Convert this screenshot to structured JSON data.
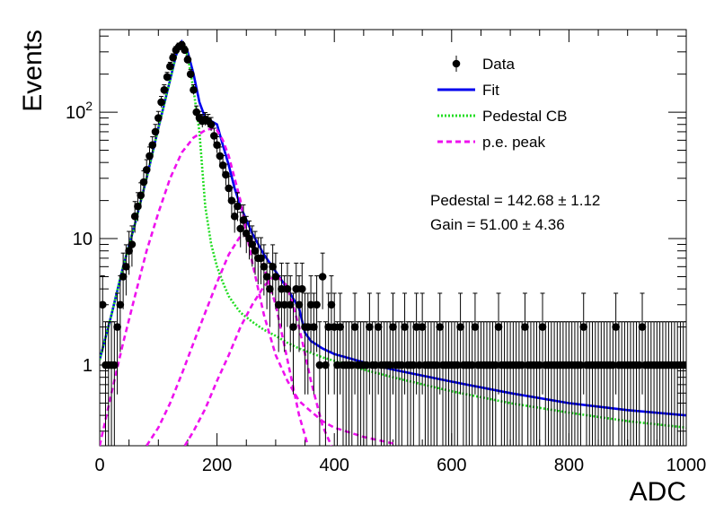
{
  "chart_data": {
    "type": "scatter",
    "title": "",
    "xlabel": "ADC",
    "ylabel": "Events",
    "xlim": [
      0,
      1000
    ],
    "ylim": [
      0.23,
      450
    ],
    "yscale": "log",
    "grid": false,
    "legend_position": "top-right",
    "x_ticks": [
      0,
      200,
      400,
      600,
      800,
      1000
    ],
    "x_tick_labels": [
      "0",
      "200",
      "400",
      "600",
      "800",
      "1000"
    ],
    "y_ticks": [
      1,
      10,
      100
    ],
    "y_tick_labels": [
      "1",
      "10",
      "10^2"
    ],
    "legend": [
      {
        "key": "data",
        "label": "Data",
        "marker": "errorpoint",
        "color": "#000000"
      },
      {
        "key": "fit",
        "label": "Fit",
        "marker": "solid",
        "color": "#0000ee"
      },
      {
        "key": "pedestal",
        "label": "Pedestal CB",
        "marker": "dotted",
        "color": "#22dd22"
      },
      {
        "key": "pe",
        "label": "p.e. peak",
        "marker": "dashed",
        "color": "#ee11ee"
      }
    ],
    "annotations": {
      "pedestal": "Pedestal = 142.68 ± 1.12",
      "gain": "Gain = 51.00 ± 4.36"
    },
    "series": [
      {
        "key": "data",
        "type": "errorpoints",
        "color": "#000000",
        "x": [
          5,
          10,
          15,
          20,
          25,
          30,
          35,
          40,
          45,
          50,
          55,
          60,
          65,
          70,
          75,
          80,
          85,
          90,
          95,
          100,
          105,
          110,
          115,
          120,
          125,
          130,
          135,
          140,
          145,
          150,
          155,
          160,
          165,
          170,
          175,
          180,
          185,
          190,
          195,
          200,
          205,
          210,
          215,
          220,
          225,
          230,
          235,
          240,
          245,
          250,
          255,
          260,
          265,
          270,
          275,
          280,
          285,
          290,
          295,
          300,
          305,
          310,
          315,
          320,
          325,
          330,
          335,
          340,
          345,
          350,
          355,
          360,
          365,
          370,
          375,
          380,
          385,
          390,
          395,
          400,
          405,
          410,
          415,
          420,
          425,
          430,
          435,
          440,
          445,
          450,
          455,
          460,
          465,
          470,
          475,
          480,
          485,
          490,
          495,
          500,
          505,
          510,
          515,
          520,
          525,
          530,
          535,
          540,
          545,
          550,
          555,
          560,
          565,
          570,
          575,
          580,
          585,
          590,
          595,
          600,
          605,
          610,
          615,
          620,
          625,
          630,
          635,
          640,
          645,
          650,
          655,
          660,
          665,
          670,
          675,
          680,
          685,
          690,
          695,
          700,
          705,
          710,
          715,
          720,
          725,
          730,
          735,
          740,
          745,
          750,
          755,
          760,
          765,
          770,
          775,
          780,
          785,
          790,
          795,
          800,
          805,
          810,
          815,
          820,
          825,
          830,
          835,
          840,
          845,
          850,
          855,
          860,
          865,
          870,
          875,
          880,
          885,
          890,
          895,
          900,
          905,
          910,
          915,
          920,
          925,
          930,
          935,
          940,
          945,
          950,
          955,
          960,
          965,
          970,
          975,
          980,
          985,
          990,
          995,
          1000
        ],
        "y": [
          3,
          1,
          1,
          1,
          1,
          2,
          3,
          5,
          6,
          8,
          9,
          15,
          18,
          22,
          28,
          35,
          45,
          55,
          70,
          90,
          120,
          150,
          190,
          230,
          270,
          310,
          330,
          340,
          310,
          260,
          200,
          150,
          100,
          90,
          85,
          88,
          85,
          80,
          65,
          55,
          45,
          38,
          32,
          25,
          20,
          15,
          18,
          12,
          14,
          11,
          10,
          9,
          8,
          7,
          7,
          6,
          5,
          4,
          6,
          5,
          3,
          4,
          3,
          4,
          3,
          2,
          4,
          3,
          4,
          2,
          2,
          3,
          2,
          3,
          1,
          5,
          1,
          2,
          3,
          2,
          1,
          2,
          1,
          1,
          1,
          1,
          2,
          1,
          1,
          1,
          1,
          2,
          1,
          1,
          2,
          1,
          1,
          1,
          1,
          2,
          1,
          1,
          1,
          2,
          1,
          1,
          1,
          2,
          1,
          2,
          1,
          1,
          1,
          1,
          1,
          2,
          1,
          1,
          1,
          1,
          1,
          1,
          2,
          1,
          1,
          1,
          1,
          2,
          1,
          1,
          1,
          1,
          1,
          1,
          1,
          2,
          1,
          1,
          1,
          1,
          1,
          1,
          1,
          1,
          2,
          1,
          1,
          1,
          1,
          1,
          2,
          1,
          1,
          1,
          1,
          1,
          1,
          1,
          1,
          1,
          1,
          1,
          1,
          1,
          2,
          1,
          1,
          1,
          1,
          1,
          1,
          1,
          1,
          1,
          1,
          2,
          1,
          1,
          1,
          1,
          1,
          1,
          1,
          1,
          2,
          1,
          1,
          1,
          1,
          1,
          1,
          1,
          1,
          1,
          1,
          1,
          1,
          1,
          1,
          1
        ]
      },
      {
        "key": "fit",
        "type": "line",
        "style": "solid",
        "color": "#0000ee",
        "x": [
          0,
          20,
          40,
          60,
          80,
          100,
          120,
          130,
          140,
          150,
          160,
          170,
          180,
          190,
          200,
          210,
          220,
          230,
          240,
          260,
          280,
          300,
          320,
          340,
          350,
          360,
          380,
          400,
          450,
          500,
          600,
          700,
          800,
          900,
          1000
        ],
        "y": [
          1.1,
          2.5,
          6,
          13,
          30,
          75,
          180,
          280,
          360,
          300,
          200,
          120,
          90,
          85,
          80,
          55,
          38,
          25,
          18,
          11,
          7.5,
          5.5,
          4,
          2.8,
          1.8,
          1.55,
          1.35,
          1.22,
          1.05,
          0.92,
          0.74,
          0.6,
          0.5,
          0.44,
          0.4
        ]
      },
      {
        "key": "pedestal",
        "type": "line",
        "style": "dotted",
        "color": "#22dd22",
        "x": [
          0,
          20,
          40,
          60,
          80,
          100,
          120,
          130,
          140,
          150,
          160,
          170,
          175,
          180,
          190,
          200,
          210,
          220,
          230,
          240,
          260,
          280,
          300,
          320,
          340,
          360,
          380,
          400,
          450,
          500,
          600,
          700,
          800,
          900,
          1000
        ],
        "y": [
          1.1,
          2.5,
          6,
          13,
          30,
          75,
          180,
          280,
          360,
          280,
          150,
          70,
          35,
          18,
          9,
          6,
          4.5,
          3.5,
          3,
          2.6,
          2.2,
          1.9,
          1.7,
          1.5,
          1.35,
          1.25,
          1.15,
          1.08,
          0.92,
          0.8,
          0.62,
          0.5,
          0.42,
          0.36,
          0.32
        ]
      },
      {
        "key": "pe1",
        "type": "line",
        "style": "dashed",
        "color": "#ee11ee",
        "x": [
          0,
          20,
          40,
          60,
          80,
          100,
          120,
          140,
          160,
          180,
          190,
          195,
          200,
          210,
          220,
          240,
          260,
          280,
          300,
          320,
          340,
          360,
          380,
          400,
          450,
          500
        ],
        "y": [
          0.23,
          0.6,
          1.5,
          3.5,
          8,
          16,
          30,
          48,
          63,
          72,
          74,
          75,
          72,
          60,
          45,
          20,
          6.5,
          2.5,
          1.2,
          0.75,
          0.52,
          0.43,
          0.36,
          0.32,
          0.27,
          0.24
        ]
      },
      {
        "key": "pe2",
        "type": "line",
        "style": "dashed",
        "color": "#ee11ee",
        "x": [
          80,
          100,
          120,
          140,
          160,
          180,
          200,
          220,
          240,
          245,
          260,
          280,
          300,
          320,
          340,
          355
        ],
        "y": [
          0.23,
          0.32,
          0.5,
          0.85,
          1.5,
          2.6,
          4.5,
          7.5,
          10.5,
          10.8,
          9.5,
          6,
          3,
          1.1,
          0.4,
          0.23
        ]
      },
      {
        "key": "pe3",
        "type": "line",
        "style": "dashed",
        "color": "#ee11ee",
        "x": [
          145,
          160,
          180,
          200,
          220,
          240,
          260,
          280,
          300,
          320,
          340,
          360,
          380,
          395
        ],
        "y": [
          0.23,
          0.3,
          0.45,
          0.75,
          1.2,
          2,
          3,
          4.2,
          5.2,
          4.2,
          2,
          0.75,
          0.33,
          0.23
        ]
      }
    ]
  }
}
